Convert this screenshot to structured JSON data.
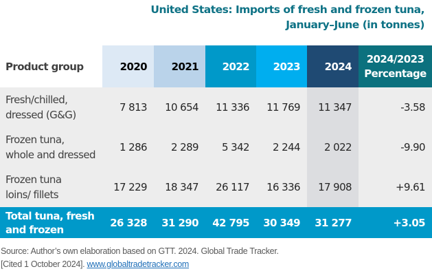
{
  "title": {
    "line1": "United States: Imports of fresh and frozen tuna,",
    "line2": "January–June (in tonnes)"
  },
  "table": {
    "headers": {
      "product_group": "Product group",
      "y2020": "2020",
      "y2021": "2021",
      "y2022": "2022",
      "y2023": "2023",
      "y2024": "2024",
      "pct_line1": "2024/2023",
      "pct_line2": "Percentage"
    },
    "rows": [
      {
        "label_line1": "Fresh/chilled,",
        "label_line2": "dressed (G&G)",
        "v2020": "7 813",
        "v2021": "10 654",
        "v2022": "11 336",
        "v2023": "11 769",
        "v2024": "11 347",
        "pct": "-3.58"
      },
      {
        "label_line1": "Frozen tuna,",
        "label_line2": "whole and dressed",
        "v2020": "1 286",
        "v2021": "2 289",
        "v2022": "5 342",
        "v2023": "2 244",
        "v2024": "2 022",
        "pct": "-9.90"
      },
      {
        "label_line1": "Frozen tuna",
        "label_line2": "loins/ fillets",
        "v2020": "17 229",
        "v2021": "18 347",
        "v2022": "26 117",
        "v2023": "16 336",
        "v2024": "17 908",
        "pct": "+9.61"
      }
    ],
    "total": {
      "label_line1": "Total tuna, fresh",
      "label_line2": "and frozen",
      "v2020": "26 328",
      "v2021": "31 290",
      "v2022": "42 795",
      "v2023": "30 349",
      "v2024": "31 277",
      "pct": "+3.05"
    }
  },
  "source": {
    "line1": "Source: Author’s own elaboration based on GTT. 2024. Global Trade Tracker.",
    "line2_prefix": "[Cited 1 October 2024]. ",
    "link_text": "www.globaltradetracker.com"
  },
  "colors": {
    "title": "#0e7285",
    "header_2020": "#dde9f5",
    "header_2021": "#bad3ea",
    "header_2022": "#0099c9",
    "header_2023": "#00aeef",
    "header_2024": "#1f4a73",
    "header_pct": "#0c717e",
    "total_row": "#0099c9",
    "body_bg": "#ededed",
    "highlight_2024": "#dcdde0"
  }
}
